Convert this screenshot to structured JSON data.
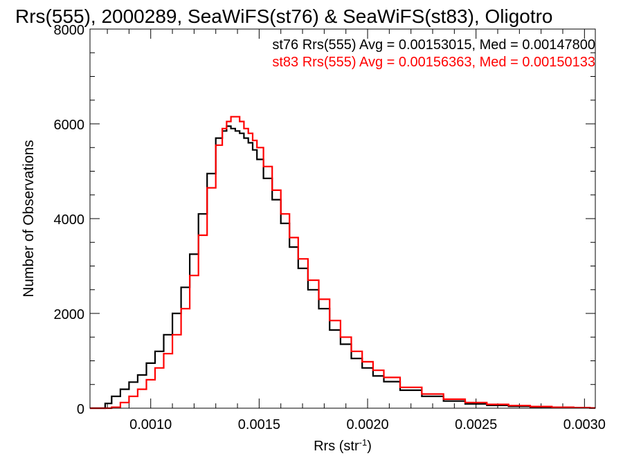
{
  "chart_data": {
    "type": "line",
    "title": "Rrs(555), 2000289, SeaWiFS(st76) & SeaWiFS(st83), Oligotro",
    "xlabel": "Rrs (str",
    "xlabel_sup": "-1",
    "xlabel_close": ")",
    "ylabel": "Number of Observations",
    "xlim": [
      0.00072,
      0.00305
    ],
    "ylim": [
      0,
      8000
    ],
    "x_ticks": [
      0.001,
      0.0015,
      0.002,
      0.0025,
      0.003
    ],
    "x_tick_labels": [
      "0.0010",
      "0.0015",
      "0.0020",
      "0.0025",
      "0.0030"
    ],
    "y_ticks": [
      0,
      2000,
      4000,
      6000,
      8000
    ],
    "y_tick_labels": [
      "0",
      "2000",
      "4000",
      "6000",
      "8000"
    ],
    "grid": false,
    "legend_position": "top-right",
    "legend_lines": [
      {
        "text": "st76 Rrs(555) Avg = 0.00153015, Med = 0.00147800",
        "color": "#000000"
      },
      {
        "text": "st83 Rrs(555) Avg = 0.00156363, Med = 0.00150133",
        "color": "#ff0000"
      }
    ],
    "series": [
      {
        "name": "st76",
        "color": "#000000",
        "x": [
          0.00072,
          0.00078,
          0.0008,
          0.00084,
          0.00088,
          0.00092,
          0.00096,
          0.001,
          0.00104,
          0.00108,
          0.00112,
          0.00116,
          0.0012,
          0.00124,
          0.00128,
          0.00132,
          0.00134,
          0.00136,
          0.00138,
          0.0014,
          0.00142,
          0.00144,
          0.00146,
          0.00148,
          0.0015,
          0.00154,
          0.00158,
          0.00162,
          0.00166,
          0.0017,
          0.00175,
          0.0018,
          0.00185,
          0.0019,
          0.00195,
          0.002,
          0.00205,
          0.0021,
          0.0022,
          0.0023,
          0.0024,
          0.0025,
          0.0026,
          0.0027,
          0.0028,
          0.0029,
          0.003,
          0.00305
        ],
        "values": [
          0,
          0,
          100,
          250,
          400,
          550,
          700,
          950,
          1200,
          1550,
          2000,
          2550,
          3250,
          4100,
          4950,
          5700,
          5850,
          5950,
          5900,
          5850,
          5800,
          5700,
          5600,
          5450,
          5250,
          4850,
          4400,
          3900,
          3400,
          2950,
          2500,
          2100,
          1650,
          1350,
          1050,
          850,
          680,
          560,
          380,
          250,
          150,
          90,
          60,
          40,
          25,
          15,
          10,
          5
        ]
      },
      {
        "name": "st83",
        "color": "#ff0000",
        "x": [
          0.00072,
          0.0008,
          0.00084,
          0.00088,
          0.00092,
          0.00096,
          0.001,
          0.00104,
          0.00108,
          0.00112,
          0.00116,
          0.0012,
          0.00124,
          0.00128,
          0.00132,
          0.00134,
          0.00136,
          0.00138,
          0.0014,
          0.00142,
          0.00144,
          0.00146,
          0.00148,
          0.0015,
          0.00154,
          0.00158,
          0.00162,
          0.00166,
          0.0017,
          0.00175,
          0.0018,
          0.00185,
          0.0019,
          0.00195,
          0.002,
          0.00205,
          0.0021,
          0.0022,
          0.0023,
          0.0024,
          0.0025,
          0.0026,
          0.0027,
          0.0028,
          0.0029,
          0.003,
          0.00305
        ],
        "values": [
          0,
          0,
          20,
          120,
          250,
          400,
          600,
          850,
          1150,
          1550,
          2100,
          2800,
          3650,
          4650,
          5550,
          5900,
          6050,
          6150,
          6150,
          6050,
          5900,
          5800,
          5650,
          5500,
          5100,
          4600,
          4100,
          3600,
          3150,
          2700,
          2300,
          1850,
          1500,
          1200,
          980,
          800,
          650,
          440,
          300,
          190,
          120,
          80,
          55,
          35,
          20,
          12,
          6
        ]
      }
    ]
  }
}
